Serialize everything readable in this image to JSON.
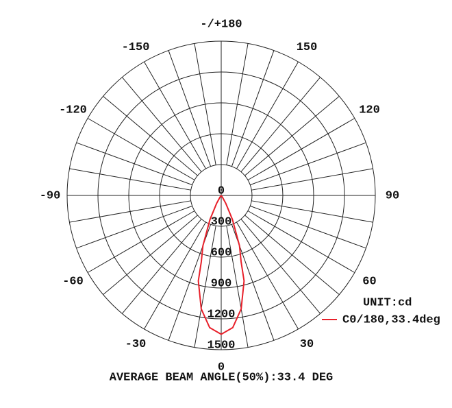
{
  "chart_data": {
    "type": "polar",
    "unit_label": "UNIT:cd",
    "footer": "AVERAGE BEAM ANGLE(50%):33.4 DEG",
    "x": [
      -40,
      -35,
      -30,
      -25,
      -20,
      -16.7,
      -15,
      -10,
      -5,
      0,
      5,
      10,
      15,
      16.7,
      20,
      25,
      30,
      35,
      40
    ],
    "series": [
      {
        "name": "C0/180,33.4deg",
        "color": "#e8202a",
        "values": [
          0,
          20,
          90,
          260,
          520,
          675,
          860,
          1120,
          1290,
          1350,
          1290,
          1120,
          860,
          675,
          520,
          260,
          90,
          20,
          0
        ]
      }
    ],
    "rlim": [
      0,
      1500
    ],
    "rticks": [
      0,
      300,
      600,
      900,
      1200,
      1500
    ],
    "xticks": [
      {
        "value": 180,
        "label": "-/+180"
      },
      150,
      120,
      90,
      60,
      30,
      0,
      -30,
      -60,
      -90,
      -120,
      -150
    ],
    "legend": "lower-right"
  }
}
